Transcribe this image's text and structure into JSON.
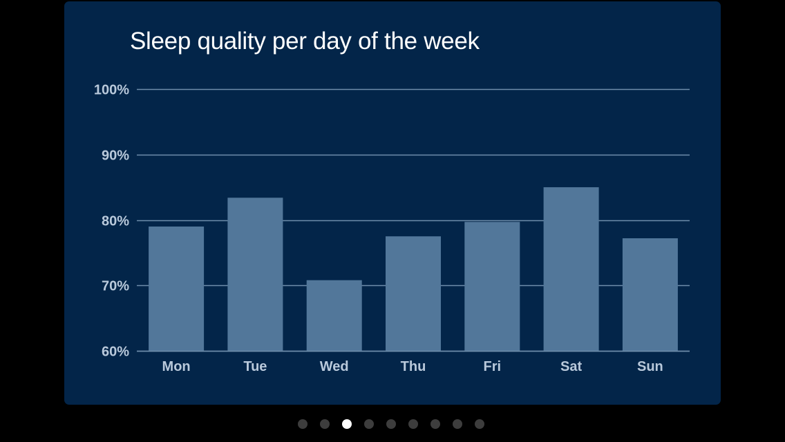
{
  "colors": {
    "background": "#000000",
    "card": "#032549",
    "bar": "#52779a",
    "grid": "#6f8eab",
    "tick_text": "#b9c9db",
    "title_text": "#ffffff",
    "dot_active": "#ffffff",
    "dot_inactive": "#3d3d3d"
  },
  "pager": {
    "count": 9,
    "active_index": 2
  },
  "chart_data": {
    "type": "bar",
    "title": "Sleep quality per day of the week",
    "xlabel": "",
    "ylabel": "",
    "categories": [
      "Mon",
      "Tue",
      "Wed",
      "Thu",
      "Fri",
      "Sat",
      "Sun"
    ],
    "values": [
      79,
      83.4,
      70.8,
      77.5,
      79.7,
      85,
      77.2
    ],
    "ylim": [
      60,
      100
    ],
    "yticks": [
      60,
      70,
      80,
      90,
      100
    ],
    "ytick_labels": [
      "60%",
      "70%",
      "80%",
      "90%",
      "100%"
    ],
    "grid": true,
    "legend": "none"
  }
}
